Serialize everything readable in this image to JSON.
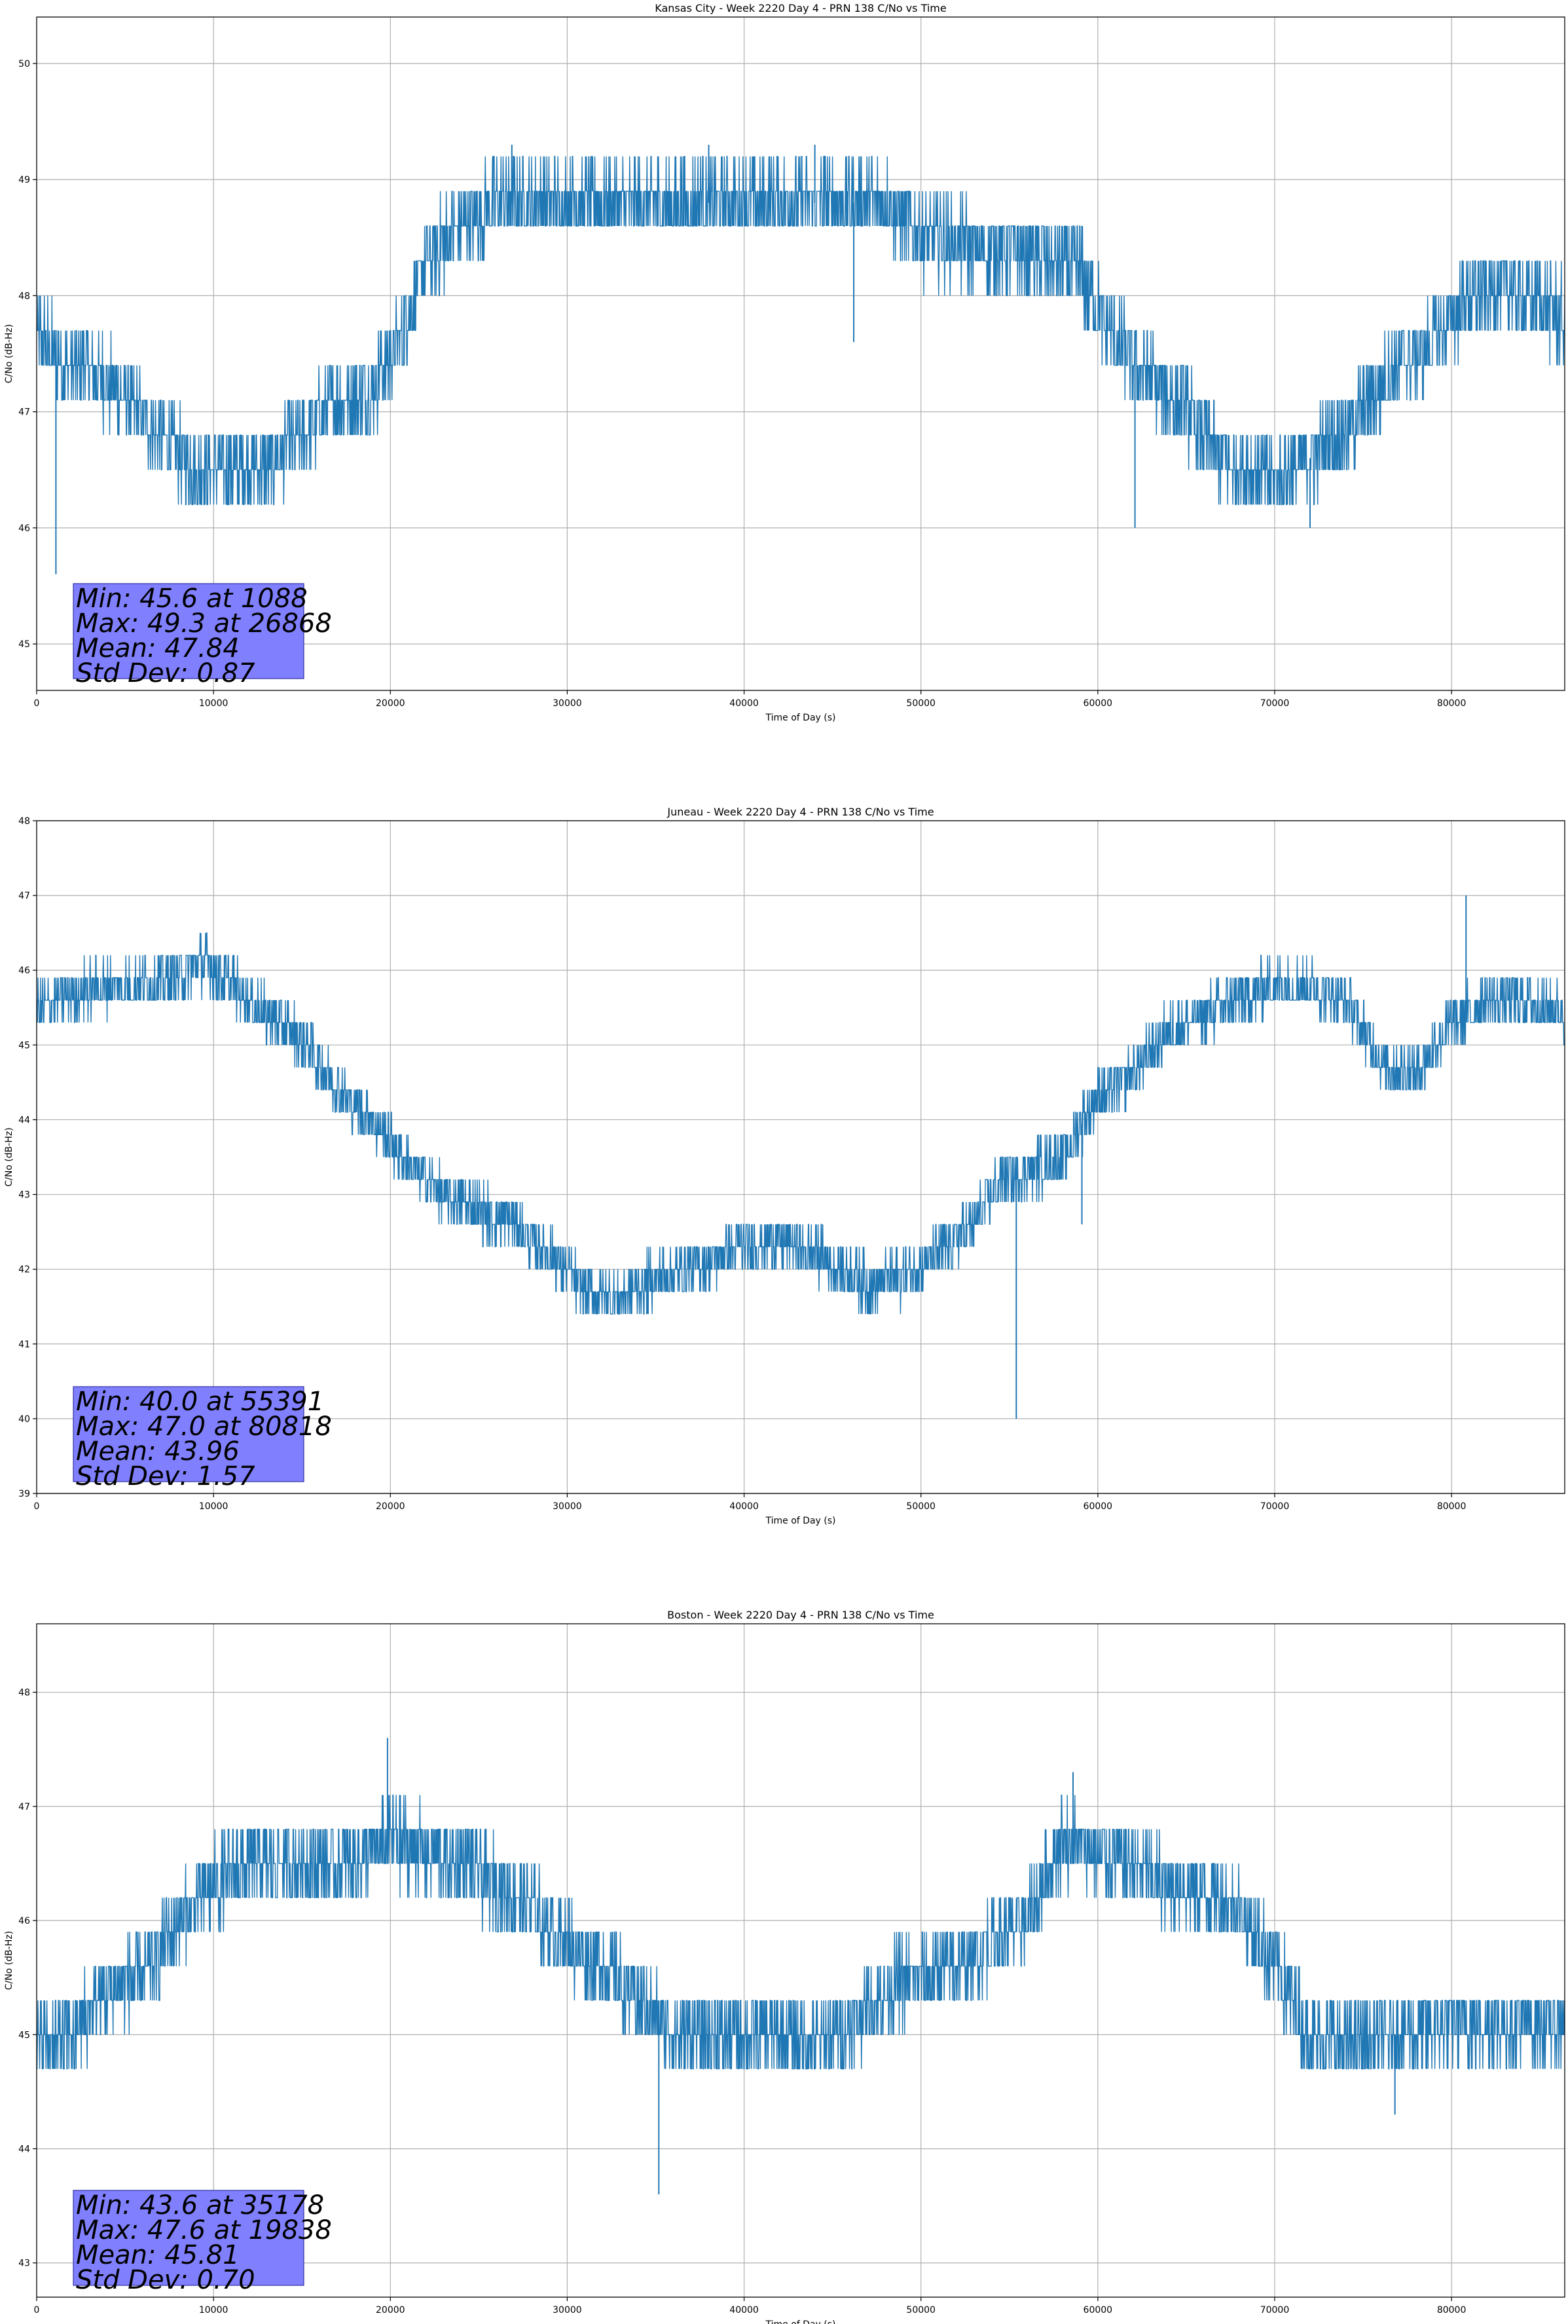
{
  "figure": {
    "background": "#ffffff",
    "line_color": "#1f77b4",
    "stats_box_color": "#8080ff",
    "grid_color": "#b0b0b0"
  },
  "chart_data": [
    {
      "type": "line",
      "title": "Kansas City - Week 2220 Day 4 - PRN 138 C/No vs Time",
      "xlabel": "Time of Day (s)",
      "ylabel": "C/No (dB-Hz)",
      "xlim": [
        0,
        86400
      ],
      "ylim": [
        44.6,
        50.4
      ],
      "xticks": [
        0,
        10000,
        20000,
        30000,
        40000,
        50000,
        60000,
        70000,
        80000
      ],
      "xtick_labels": [
        "0",
        "10000",
        "20000",
        "30000",
        "40000",
        "50000",
        "60000",
        "70000",
        "80000"
      ],
      "yticks": [
        45,
        46,
        47,
        48,
        49,
        50
      ],
      "ytick_labels": [
        "45",
        "46",
        "47",
        "48",
        "49",
        "50"
      ],
      "grid": true,
      "step": 0.3,
      "noise": 0.35,
      "trend": {
        "x": [
          0,
          1500,
          3000,
          5000,
          7000,
          9000,
          11000,
          13000,
          15000,
          17000,
          19000,
          20500,
          22000,
          24000,
          26000,
          28000,
          30000,
          35000,
          40000,
          45000,
          48000,
          50000,
          54000,
          55400,
          57000,
          59000,
          61000,
          63000,
          65000,
          67000,
          70000,
          73000,
          75000,
          77000,
          79000,
          81000,
          83000,
          86400
        ],
        "y": [
          47.7,
          47.4,
          47.4,
          47.1,
          46.8,
          46.5,
          46.5,
          46.5,
          46.8,
          47.1,
          47.2,
          47.6,
          48.3,
          48.6,
          48.8,
          48.8,
          48.8,
          48.8,
          48.8,
          48.8,
          48.8,
          48.5,
          48.4,
          48.4,
          48.3,
          48.2,
          47.6,
          47.3,
          47.0,
          46.6,
          46.4,
          46.7,
          47.0,
          47.4,
          47.6,
          48.0,
          48.1,
          47.8
        ]
      },
      "spikes": [
        {
          "x": 1088,
          "y": 45.6
        },
        {
          "x": 46200,
          "y": 47.6
        },
        {
          "x": 62100,
          "y": 46.0
        },
        {
          "x": 72000,
          "y": 46.0
        },
        {
          "x": 26868,
          "y": 49.3
        },
        {
          "x": 38000,
          "y": 49.3
        },
        {
          "x": 44000,
          "y": 49.3
        }
      ],
      "stats": [
        "Min: 45.6 at 1088",
        "Max: 49.3 at 26868",
        "Mean: 47.84",
        "Std Dev: 0.87"
      ]
    },
    {
      "type": "line",
      "title": "Juneau - Week 2220 Day 4 - PRN 138 C/No vs Time",
      "xlabel": "Time of Day (s)",
      "ylabel": "C/No (dB-Hz)",
      "xlim": [
        0,
        86400
      ],
      "ylim": [
        39,
        48
      ],
      "xticks": [
        0,
        10000,
        20000,
        30000,
        40000,
        50000,
        60000,
        70000,
        80000
      ],
      "xtick_labels": [
        "0",
        "10000",
        "20000",
        "30000",
        "40000",
        "50000",
        "60000",
        "70000",
        "80000"
      ],
      "yticks": [
        39,
        40,
        41,
        42,
        43,
        44,
        45,
        46,
        47,
        48
      ],
      "ytick_labels": [
        "39",
        "40",
        "41",
        "42",
        "43",
        "44",
        "45",
        "46",
        "47",
        "48"
      ],
      "grid": true,
      "step": 0.3,
      "noise": 0.35,
      "trend": {
        "x": [
          0,
          2000,
          4000,
          6000,
          8000,
          9500,
          11000,
          13000,
          15000,
          17000,
          19000,
          21000,
          23000,
          25000,
          27000,
          29000,
          31000,
          33000,
          35000,
          37000,
          40000,
          42000,
          45000,
          47000,
          49000,
          51000,
          53000,
          54500,
          56000,
          58000,
          60000,
          62000,
          64000,
          66000,
          68000,
          70000,
          72000,
          74000,
          76000,
          78000,
          80000,
          82000,
          84000,
          86400
        ],
        "y": [
          45.5,
          45.7,
          45.8,
          45.8,
          45.9,
          46.1,
          45.8,
          45.4,
          45.1,
          44.4,
          44.0,
          43.4,
          43.0,
          42.8,
          42.6,
          42.2,
          41.7,
          41.6,
          41.9,
          42.0,
          42.3,
          42.4,
          42.1,
          41.8,
          41.9,
          42.2,
          42.6,
          43.2,
          43.3,
          43.5,
          44.3,
          44.6,
          45.2,
          45.4,
          45.6,
          45.8,
          45.8,
          45.6,
          44.8,
          44.6,
          45.3,
          45.6,
          45.6,
          45.4
        ]
      },
      "spikes": [
        {
          "x": 55391,
          "y": 40.0
        },
        {
          "x": 80818,
          "y": 47.0
        },
        {
          "x": 59100,
          "y": 42.6
        }
      ],
      "stats": [
        "Min: 40.0 at 55391",
        "Max: 47.0 at 80818",
        "Mean: 43.96",
        "Std Dev: 1.57"
      ]
    },
    {
      "type": "line",
      "title": "Boston - Week 2220 Day 4 - PRN 138 C/No vs Time",
      "xlabel": "Time of Day (s)",
      "ylabel": "C/No (dB-Hz)",
      "xlim": [
        0,
        86400
      ],
      "ylim": [
        42.7,
        48.6
      ],
      "xticks": [
        0,
        10000,
        20000,
        30000,
        40000,
        50000,
        60000,
        70000,
        80000
      ],
      "xtick_labels": [
        "0",
        "10000",
        "20000",
        "30000",
        "40000",
        "50000",
        "60000",
        "70000",
        "80000"
      ],
      "yticks": [
        43,
        44,
        45,
        46,
        47,
        48
      ],
      "ytick_labels": [
        "43",
        "44",
        "45",
        "46",
        "47",
        "48"
      ],
      "grid": true,
      "step": 0.3,
      "noise": 0.35,
      "trend": {
        "x": [
          0,
          2000,
          4000,
          6000,
          8000,
          10000,
          12000,
          14000,
          16000,
          18000,
          20000,
          22000,
          24000,
          26000,
          28000,
          30000,
          32000,
          34000,
          36000,
          38000,
          40000,
          42000,
          44000,
          46000,
          48000,
          50000,
          52000,
          54000,
          56000,
          58000,
          60000,
          62000,
          64000,
          66000,
          68000,
          70000,
          72000,
          74000,
          76000,
          78000,
          80000,
          82000,
          84000,
          86400
        ],
        "y": [
          44.9,
          45.0,
          45.4,
          45.5,
          46.0,
          46.3,
          46.5,
          46.5,
          46.5,
          46.5,
          46.7,
          46.6,
          46.5,
          46.3,
          46.1,
          45.8,
          45.6,
          45.3,
          45.0,
          45.0,
          45.0,
          45.0,
          44.9,
          45.1,
          45.4,
          45.5,
          45.6,
          45.8,
          46.0,
          46.7,
          46.6,
          46.5,
          46.3,
          46.3,
          46.1,
          45.6,
          45.0,
          44.9,
          45.0,
          45.0,
          45.1,
          45.1,
          45.1,
          45.1
        ]
      },
      "spikes": [
        {
          "x": 35178,
          "y": 43.6
        },
        {
          "x": 19838,
          "y": 47.6
        },
        {
          "x": 76800,
          "y": 44.3
        },
        {
          "x": 58600,
          "y": 47.3
        }
      ],
      "stats": [
        "Min: 43.6 at 35178",
        "Max: 47.6 at 19838",
        "Mean: 45.81",
        "Std Dev: 0.70"
      ]
    }
  ]
}
